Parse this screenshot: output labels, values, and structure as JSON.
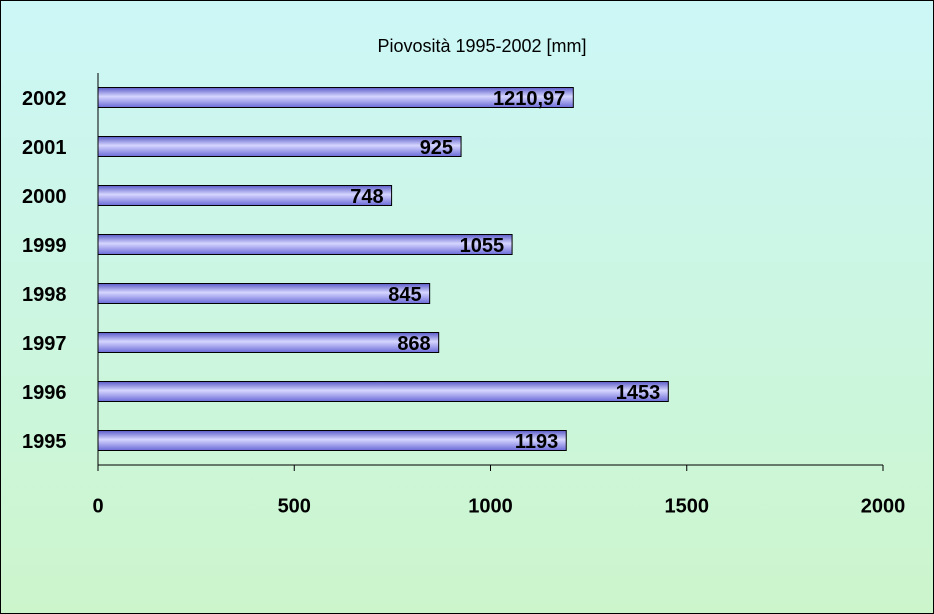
{
  "chart_data": {
    "type": "bar",
    "orientation": "horizontal",
    "title": "Piovosità 1995-2002 [mm]",
    "categories": [
      "1995",
      "1996",
      "1997",
      "1998",
      "1999",
      "2000",
      "2001",
      "2002"
    ],
    "values": [
      1193,
      1453,
      868,
      845,
      1055,
      748,
      925,
      1210.97
    ],
    "value_labels": [
      "1193",
      "1453",
      "868",
      "845",
      "1055",
      "748",
      "925",
      "1210,97"
    ],
    "color": "#7b7be6",
    "xlim": [
      0,
      2000
    ],
    "xticks": [
      0,
      500,
      1000,
      1500,
      2000
    ],
    "grid": false
  }
}
